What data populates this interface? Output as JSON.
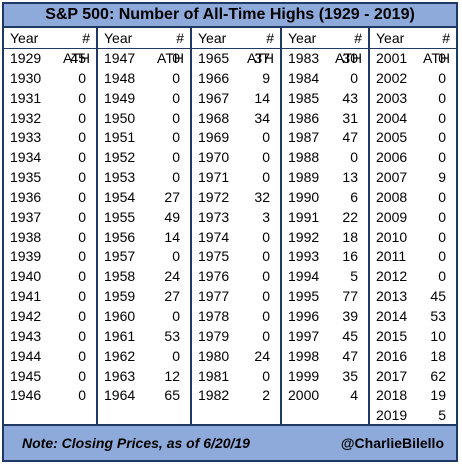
{
  "title": "S&P 500: Number of All-Time Highs (1929 - 2019)",
  "headers": {
    "year": "Year",
    "ath": "# ATH"
  },
  "columns": [
    [
      [
        "1929",
        "45"
      ],
      [
        "1930",
        "0"
      ],
      [
        "1931",
        "0"
      ],
      [
        "1932",
        "0"
      ],
      [
        "1933",
        "0"
      ],
      [
        "1934",
        "0"
      ],
      [
        "1935",
        "0"
      ],
      [
        "1936",
        "0"
      ],
      [
        "1937",
        "0"
      ],
      [
        "1938",
        "0"
      ],
      [
        "1939",
        "0"
      ],
      [
        "1940",
        "0"
      ],
      [
        "1941",
        "0"
      ],
      [
        "1942",
        "0"
      ],
      [
        "1943",
        "0"
      ],
      [
        "1944",
        "0"
      ],
      [
        "1945",
        "0"
      ],
      [
        "1946",
        "0"
      ]
    ],
    [
      [
        "1947",
        "0"
      ],
      [
        "1948",
        "0"
      ],
      [
        "1949",
        "0"
      ],
      [
        "1950",
        "0"
      ],
      [
        "1951",
        "0"
      ],
      [
        "1952",
        "0"
      ],
      [
        "1953",
        "0"
      ],
      [
        "1954",
        "27"
      ],
      [
        "1955",
        "49"
      ],
      [
        "1956",
        "14"
      ],
      [
        "1957",
        "0"
      ],
      [
        "1958",
        "24"
      ],
      [
        "1959",
        "27"
      ],
      [
        "1960",
        "0"
      ],
      [
        "1961",
        "53"
      ],
      [
        "1962",
        "0"
      ],
      [
        "1963",
        "12"
      ],
      [
        "1964",
        "65"
      ]
    ],
    [
      [
        "1965",
        "37"
      ],
      [
        "1966",
        "9"
      ],
      [
        "1967",
        "14"
      ],
      [
        "1968",
        "34"
      ],
      [
        "1969",
        "0"
      ],
      [
        "1970",
        "0"
      ],
      [
        "1971",
        "0"
      ],
      [
        "1972",
        "32"
      ],
      [
        "1973",
        "3"
      ],
      [
        "1974",
        "0"
      ],
      [
        "1975",
        "0"
      ],
      [
        "1976",
        "0"
      ],
      [
        "1977",
        "0"
      ],
      [
        "1978",
        "0"
      ],
      [
        "1979",
        "0"
      ],
      [
        "1980",
        "24"
      ],
      [
        "1981",
        "0"
      ],
      [
        "1982",
        "2"
      ]
    ],
    [
      [
        "1983",
        "30"
      ],
      [
        "1984",
        "0"
      ],
      [
        "1985",
        "43"
      ],
      [
        "1986",
        "31"
      ],
      [
        "1987",
        "47"
      ],
      [
        "1988",
        "0"
      ],
      [
        "1989",
        "13"
      ],
      [
        "1990",
        "6"
      ],
      [
        "1991",
        "22"
      ],
      [
        "1992",
        "18"
      ],
      [
        "1993",
        "16"
      ],
      [
        "1994",
        "5"
      ],
      [
        "1995",
        "77"
      ],
      [
        "1996",
        "39"
      ],
      [
        "1997",
        "45"
      ],
      [
        "1998",
        "47"
      ],
      [
        "1999",
        "35"
      ],
      [
        "2000",
        "4"
      ]
    ],
    [
      [
        "2001",
        "0"
      ],
      [
        "2002",
        "0"
      ],
      [
        "2003",
        "0"
      ],
      [
        "2004",
        "0"
      ],
      [
        "2005",
        "0"
      ],
      [
        "2006",
        "0"
      ],
      [
        "2007",
        "9"
      ],
      [
        "2008",
        "0"
      ],
      [
        "2009",
        "0"
      ],
      [
        "2010",
        "0"
      ],
      [
        "2011",
        "0"
      ],
      [
        "2012",
        "0"
      ],
      [
        "2013",
        "45"
      ],
      [
        "2014",
        "53"
      ],
      [
        "2015",
        "10"
      ],
      [
        "2016",
        "18"
      ],
      [
        "2017",
        "62"
      ],
      [
        "2018",
        "19"
      ],
      [
        "2019",
        "5"
      ]
    ]
  ],
  "footer": {
    "note": "Note: Closing Prices, as of 6/20/19",
    "handle": "@CharlieBilello"
  }
}
